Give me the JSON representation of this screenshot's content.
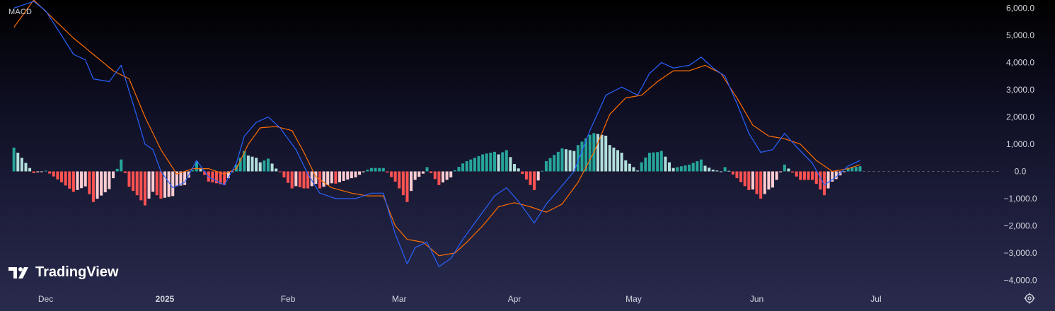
{
  "panel": {
    "label": "MACD"
  },
  "brand": {
    "name": "TradingView"
  },
  "icons": {
    "settings": "settings-gear-icon",
    "logo": "tradingview-logo-icon"
  },
  "colors": {
    "macd_line": "#2962ff",
    "signal_line": "#ff6d00",
    "hist_pos_strong": "#26a69a",
    "hist_pos_weak": "#b2dfdb",
    "hist_neg_strong": "#ff5252",
    "hist_neg_weak": "#ffcdd2",
    "axis_text": "#d1d4dc",
    "zero_line": "#5d606b"
  },
  "chart_data": {
    "type": "line",
    "title": "MACD",
    "ylim": [
      -4300,
      6300
    ],
    "y_ticks": [
      6000,
      5000,
      4000,
      3000,
      2000,
      1000,
      0,
      -1000,
      -2000,
      -3000,
      -4000
    ],
    "y_tick_labels": [
      "6,000.0",
      "5,000.0",
      "4,000.0",
      "3,000.0",
      "2,000.0",
      "1,000.0",
      "0.0",
      "−1,000.0",
      "−2,000.0",
      "−3,000.0",
      "−4,000.0"
    ],
    "x_tick_labels": [
      {
        "label": "Dec",
        "index": 8
      },
      {
        "label": "2025",
        "index": 38,
        "bold": true
      },
      {
        "label": "Feb",
        "index": 69
      },
      {
        "label": "Mar",
        "index": 97
      },
      {
        "label": "Apr",
        "index": 126
      },
      {
        "label": "May",
        "index": 156
      },
      {
        "label": "Jun",
        "index": 187
      },
      {
        "label": "Jul",
        "index": 217
      }
    ],
    "x_range": [
      -3.5,
      248
    ],
    "last_index": 213,
    "series": [
      {
        "key": "macd",
        "anchors": [
          [
            0,
            6000
          ],
          [
            5,
            6250
          ],
          [
            8,
            5900
          ],
          [
            12,
            5000
          ],
          [
            15,
            4300
          ],
          [
            18,
            4100
          ],
          [
            20,
            3400
          ],
          [
            24,
            3300
          ],
          [
            27,
            3900
          ],
          [
            31,
            2000
          ],
          [
            33,
            1000
          ],
          [
            35,
            800
          ],
          [
            37,
            0
          ],
          [
            40,
            -600
          ],
          [
            43,
            -400
          ],
          [
            46,
            400
          ],
          [
            49,
            -200
          ],
          [
            53,
            -500
          ],
          [
            56,
            300
          ],
          [
            58,
            1300
          ],
          [
            61,
            1800
          ],
          [
            64,
            2000
          ],
          [
            67,
            1600
          ],
          [
            71,
            800
          ],
          [
            74,
            -100
          ],
          [
            77,
            -800
          ],
          [
            81,
            -1000
          ],
          [
            86,
            -1000
          ],
          [
            90,
            -800
          ],
          [
            93,
            -800
          ],
          [
            96,
            -2300
          ],
          [
            99,
            -3400
          ],
          [
            101,
            -2800
          ],
          [
            104,
            -2600
          ],
          [
            107,
            -3500
          ],
          [
            110,
            -3200
          ],
          [
            113,
            -2500
          ],
          [
            117,
            -1700
          ],
          [
            121,
            -900
          ],
          [
            124,
            -600
          ],
          [
            127,
            -1100
          ],
          [
            131,
            -1900
          ],
          [
            134,
            -1200
          ],
          [
            137,
            -700
          ],
          [
            141,
            0
          ],
          [
            145,
            1500
          ],
          [
            149,
            2800
          ],
          [
            153,
            3100
          ],
          [
            157,
            2800
          ],
          [
            160,
            3600
          ],
          [
            163,
            4000
          ],
          [
            166,
            3800
          ],
          [
            170,
            3900
          ],
          [
            173,
            4200
          ],
          [
            176,
            3800
          ],
          [
            179,
            3500
          ],
          [
            182,
            2500
          ],
          [
            185,
            1400
          ],
          [
            188,
            700
          ],
          [
            191,
            800
          ],
          [
            194,
            1400
          ],
          [
            197,
            900
          ],
          [
            201,
            300
          ],
          [
            204,
            -500
          ],
          [
            207,
            -200
          ],
          [
            210,
            200
          ],
          [
            213,
            400
          ]
        ]
      },
      {
        "key": "signal",
        "anchors": [
          [
            0,
            5300
          ],
          [
            5,
            6300
          ],
          [
            10,
            5600
          ],
          [
            15,
            4900
          ],
          [
            20,
            4300
          ],
          [
            25,
            3700
          ],
          [
            29,
            3400
          ],
          [
            33,
            2000
          ],
          [
            37,
            800
          ],
          [
            41,
            -100
          ],
          [
            45,
            100
          ],
          [
            49,
            100
          ],
          [
            53,
            -100
          ],
          [
            56,
            100
          ],
          [
            59,
            1000
          ],
          [
            62,
            1600
          ],
          [
            66,
            1650
          ],
          [
            70,
            1500
          ],
          [
            73,
            700
          ],
          [
            76,
            -200
          ],
          [
            80,
            -600
          ],
          [
            85,
            -800
          ],
          [
            89,
            -900
          ],
          [
            93,
            -900
          ],
          [
            96,
            -2000
          ],
          [
            99,
            -2500
          ],
          [
            103,
            -2600
          ],
          [
            107,
            -3100
          ],
          [
            111,
            -3000
          ],
          [
            114,
            -2600
          ],
          [
            118,
            -2000
          ],
          [
            122,
            -1300
          ],
          [
            126,
            -1150
          ],
          [
            130,
            -1300
          ],
          [
            134,
            -1500
          ],
          [
            138,
            -1200
          ],
          [
            142,
            -400
          ],
          [
            146,
            700
          ],
          [
            150,
            2100
          ],
          [
            154,
            2700
          ],
          [
            158,
            2800
          ],
          [
            162,
            3300
          ],
          [
            166,
            3700
          ],
          [
            170,
            3700
          ],
          [
            174,
            3900
          ],
          [
            178,
            3600
          ],
          [
            182,
            2700
          ],
          [
            186,
            1700
          ],
          [
            190,
            1300
          ],
          [
            194,
            1200
          ],
          [
            198,
            1000
          ],
          [
            202,
            400
          ],
          [
            206,
            0
          ],
          [
            210,
            100
          ],
          [
            213,
            250
          ]
        ]
      }
    ]
  }
}
